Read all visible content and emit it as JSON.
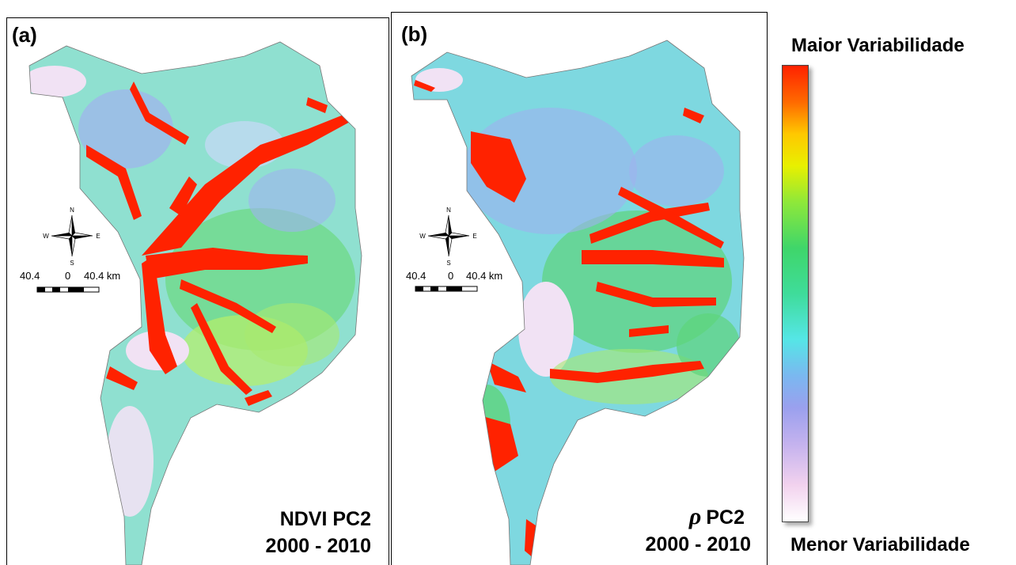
{
  "panel_a": {
    "letter": "(a)",
    "caption_line1": "NDVI PC2",
    "caption_line2": "2000 - 2010"
  },
  "panel_b": {
    "letter": "(b)",
    "caption_symbol": "ρ",
    "caption_line1": "PC2",
    "caption_line2": "2000 - 2010"
  },
  "compass": {
    "n": "N",
    "s": "S",
    "e": "E",
    "w": "W"
  },
  "scale_bar": {
    "left": "40.4",
    "center": "0",
    "right": "40.4 km"
  },
  "legend": {
    "top_label": "Maior Variabilidade",
    "bottom_label": "Menor Variabilidade",
    "colors": [
      "#ff2200",
      "#ffc800",
      "#8ee83a",
      "#3fd66a",
      "#55e6e6",
      "#9aa0ee",
      "#f2d2ee",
      "#ffffff"
    ]
  }
}
